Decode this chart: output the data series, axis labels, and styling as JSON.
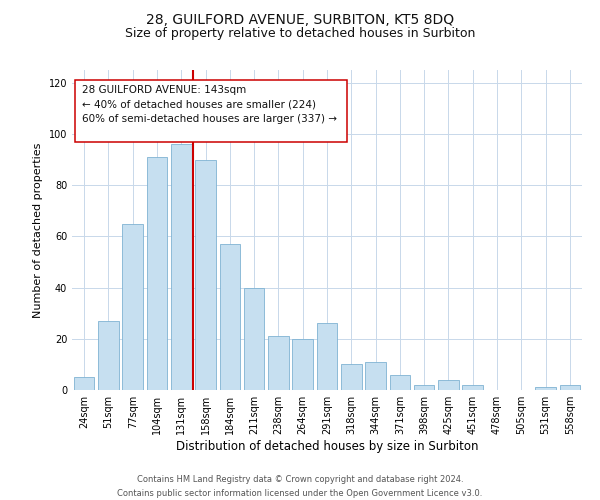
{
  "title": "28, GUILFORD AVENUE, SURBITON, KT5 8DQ",
  "subtitle": "Size of property relative to detached houses in Surbiton",
  "xlabel": "Distribution of detached houses by size in Surbiton",
  "ylabel": "Number of detached properties",
  "bar_labels": [
    "24sqm",
    "51sqm",
    "77sqm",
    "104sqm",
    "131sqm",
    "158sqm",
    "184sqm",
    "211sqm",
    "238sqm",
    "264sqm",
    "291sqm",
    "318sqm",
    "344sqm",
    "371sqm",
    "398sqm",
    "425sqm",
    "451sqm",
    "478sqm",
    "505sqm",
    "531sqm",
    "558sqm"
  ],
  "bar_values": [
    5,
    27,
    65,
    91,
    96,
    90,
    57,
    40,
    21,
    20,
    26,
    10,
    11,
    6,
    2,
    4,
    2,
    0,
    0,
    1,
    2
  ],
  "bar_color": "#c6dff0",
  "bar_edge_color": "#7fb3d3",
  "vline_x_idx": 4.5,
  "vline_color": "#cc0000",
  "annotation_line1": "28 GUILFORD AVENUE: 143sqm",
  "annotation_line2": "← 40% of detached houses are smaller (224)",
  "annotation_line3": "60% of semi-detached houses are larger (337) →",
  "annotation_box_edge_color": "#cc0000",
  "ylim": [
    0,
    125
  ],
  "yticks": [
    0,
    20,
    40,
    60,
    80,
    100,
    120
  ],
  "footer_line1": "Contains HM Land Registry data © Crown copyright and database right 2024.",
  "footer_line2": "Contains public sector information licensed under the Open Government Licence v3.0.",
  "background_color": "#ffffff",
  "grid_color": "#c8d8ea",
  "title_fontsize": 10,
  "subtitle_fontsize": 9,
  "tick_fontsize": 7,
  "ylabel_fontsize": 8,
  "xlabel_fontsize": 8.5,
  "footer_fontsize": 6,
  "annotation_fontsize": 7.5
}
